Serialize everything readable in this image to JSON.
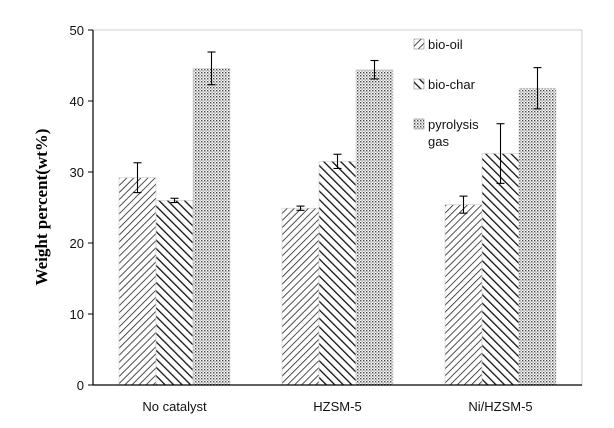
{
  "chart_data": {
    "type": "bar",
    "title": "",
    "xlabel": "",
    "ylabel": "Weight percent(wt%)",
    "ylim": [
      0,
      50
    ],
    "yticks": [
      0,
      10,
      20,
      30,
      40,
      50
    ],
    "categories": [
      "No catalyst",
      "HZSM-5",
      "Ni/HZSM-5"
    ],
    "series": [
      {
        "name": "bio-oil",
        "pattern": "hatch-right",
        "values": [
          29.2,
          24.9,
          25.4
        ],
        "errors": [
          2.1,
          0.3,
          1.2
        ]
      },
      {
        "name": "bio-char",
        "pattern": "hatch-left",
        "values": [
          26.0,
          31.5,
          32.6
        ],
        "errors": [
          0.3,
          1.0,
          4.2
        ]
      },
      {
        "name": "pyrolysis gas",
        "pattern": "dots",
        "values": [
          44.6,
          44.4,
          41.8
        ],
        "errors": [
          2.3,
          1.3,
          2.9
        ]
      }
    ],
    "legend": {
      "placement": "top-right",
      "entries": [
        {
          "lines": [
            "bio-oil"
          ]
        },
        {
          "lines": [
            "bio-char"
          ]
        },
        {
          "lines": [
            "pyrolysis",
            "gas"
          ]
        }
      ]
    },
    "grid": false
  }
}
